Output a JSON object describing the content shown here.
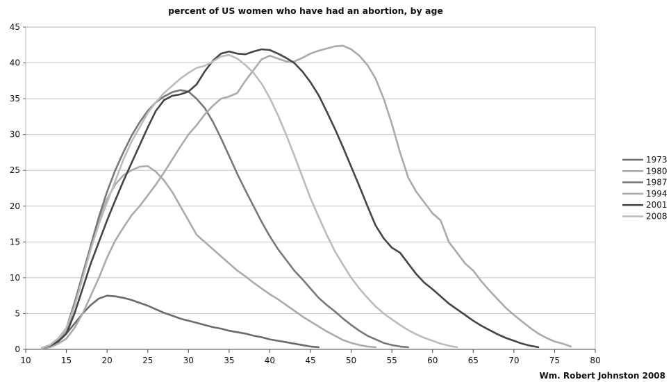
{
  "chart_data": {
    "type": "line",
    "title": "percent of US women who have had an abortion, by age",
    "xlabel": "",
    "ylabel": "",
    "xlim": [
      10,
      80
    ],
    "ylim": [
      0,
      45
    ],
    "x_ticks": [
      "10",
      "15",
      "20",
      "25",
      "30",
      "35",
      "40",
      "45",
      "50",
      "55",
      "60",
      "65",
      "70",
      "75",
      "80"
    ],
    "y_ticks": [
      "0",
      "5",
      "10",
      "15",
      "20",
      "25",
      "30",
      "35",
      "40",
      "45"
    ],
    "grid": "horizontal",
    "legend_position": "right",
    "credit": "Wm. Robert Johnston 2008",
    "series": [
      {
        "name": "1973",
        "color": "#6b6b6b",
        "points": [
          [
            12,
            0.2
          ],
          [
            13,
            0.5
          ],
          [
            14,
            1.2
          ],
          [
            15,
            2.2
          ],
          [
            16,
            3.6
          ],
          [
            17,
            5.0
          ],
          [
            18,
            6.2
          ],
          [
            19,
            7.1
          ],
          [
            20,
            7.5
          ],
          [
            21,
            7.4
          ],
          [
            22,
            7.2
          ],
          [
            23,
            6.9
          ],
          [
            24,
            6.5
          ],
          [
            25,
            6.1
          ],
          [
            26,
            5.6
          ],
          [
            27,
            5.1
          ],
          [
            28,
            4.7
          ],
          [
            29,
            4.3
          ],
          [
            30,
            4.0
          ],
          [
            31,
            3.7
          ],
          [
            32,
            3.4
          ],
          [
            33,
            3.1
          ],
          [
            34,
            2.9
          ],
          [
            35,
            2.6
          ],
          [
            36,
            2.4
          ],
          [
            37,
            2.2
          ],
          [
            38,
            1.9
          ],
          [
            39,
            1.7
          ],
          [
            40,
            1.4
          ],
          [
            41,
            1.2
          ],
          [
            42,
            1.0
          ],
          [
            43,
            0.8
          ],
          [
            44,
            0.6
          ],
          [
            45,
            0.4
          ],
          [
            46,
            0.3
          ]
        ]
      },
      {
        "name": "1980",
        "color": "#aaaaaa",
        "points": [
          [
            12,
            0.2
          ],
          [
            13,
            0.6
          ],
          [
            14,
            1.5
          ],
          [
            15,
            2.5
          ],
          [
            16,
            6.0
          ],
          [
            17,
            10.0
          ],
          [
            18,
            14.0
          ],
          [
            19,
            18.0
          ],
          [
            20,
            21.0
          ],
          [
            21,
            23.0
          ],
          [
            22,
            24.3
          ],
          [
            23,
            25.0
          ],
          [
            24,
            25.5
          ],
          [
            25,
            25.6
          ],
          [
            26,
            24.8
          ],
          [
            27,
            23.6
          ],
          [
            28,
            22.0
          ],
          [
            29,
            20.0
          ],
          [
            30,
            18.0
          ],
          [
            31,
            16.0
          ],
          [
            32,
            15.0
          ],
          [
            33,
            14.0
          ],
          [
            34,
            13.0
          ],
          [
            35,
            12.0
          ],
          [
            36,
            11.0
          ],
          [
            37,
            10.2
          ],
          [
            38,
            9.3
          ],
          [
            39,
            8.5
          ],
          [
            40,
            7.7
          ],
          [
            41,
            7.0
          ],
          [
            42,
            6.2
          ],
          [
            43,
            5.4
          ],
          [
            44,
            4.6
          ],
          [
            45,
            3.9
          ],
          [
            46,
            3.2
          ],
          [
            47,
            2.5
          ],
          [
            48,
            1.9
          ],
          [
            49,
            1.3
          ],
          [
            50,
            0.9
          ],
          [
            51,
            0.6
          ],
          [
            52,
            0.4
          ],
          [
            53,
            0.3
          ]
        ]
      },
      {
        "name": "1987",
        "color": "#777777",
        "points": [
          [
            12,
            0.2
          ],
          [
            13,
            0.6
          ],
          [
            14,
            1.5
          ],
          [
            15,
            3.0
          ],
          [
            16,
            6.5
          ],
          [
            17,
            10.5
          ],
          [
            18,
            14.5
          ],
          [
            19,
            18.5
          ],
          [
            20,
            22.0
          ],
          [
            21,
            25.0
          ],
          [
            22,
            27.5
          ],
          [
            23,
            29.8
          ],
          [
            24,
            31.7
          ],
          [
            25,
            33.3
          ],
          [
            26,
            34.5
          ],
          [
            27,
            35.3
          ],
          [
            28,
            35.9
          ],
          [
            29,
            36.2
          ],
          [
            30,
            36.0
          ],
          [
            31,
            35.0
          ],
          [
            32,
            33.7
          ],
          [
            33,
            31.8
          ],
          [
            34,
            29.5
          ],
          [
            35,
            27.0
          ],
          [
            36,
            24.5
          ],
          [
            37,
            22.2
          ],
          [
            38,
            20.0
          ],
          [
            39,
            17.8
          ],
          [
            40,
            15.8
          ],
          [
            41,
            14.0
          ],
          [
            42,
            12.5
          ],
          [
            43,
            11.0
          ],
          [
            44,
            9.8
          ],
          [
            45,
            8.5
          ],
          [
            46,
            7.2
          ],
          [
            47,
            6.2
          ],
          [
            48,
            5.3
          ],
          [
            49,
            4.3
          ],
          [
            50,
            3.4
          ],
          [
            51,
            2.6
          ],
          [
            52,
            1.9
          ],
          [
            53,
            1.4
          ],
          [
            54,
            0.9
          ],
          [
            55,
            0.6
          ],
          [
            56,
            0.4
          ],
          [
            57,
            0.3
          ]
        ]
      },
      {
        "name": "1994",
        "color": "#aaaaaa",
        "points": [
          [
            12,
            0.1
          ],
          [
            13,
            0.3
          ],
          [
            14,
            0.8
          ],
          [
            15,
            1.5
          ],
          [
            16,
            3.0
          ],
          [
            17,
            5.0
          ],
          [
            18,
            7.5
          ],
          [
            19,
            10.0
          ],
          [
            20,
            12.8
          ],
          [
            21,
            15.2
          ],
          [
            22,
            17.0
          ],
          [
            23,
            18.7
          ],
          [
            24,
            20.0
          ],
          [
            25,
            21.5
          ],
          [
            26,
            23.0
          ],
          [
            27,
            24.7
          ],
          [
            28,
            26.5
          ],
          [
            29,
            28.3
          ],
          [
            30,
            30.0
          ],
          [
            31,
            31.3
          ],
          [
            32,
            32.8
          ],
          [
            33,
            34.0
          ],
          [
            34,
            35.0
          ],
          [
            35,
            35.3
          ],
          [
            36,
            35.8
          ],
          [
            37,
            37.5
          ],
          [
            38,
            39.0
          ],
          [
            39,
            40.5
          ],
          [
            40,
            41.0
          ],
          [
            41,
            40.6
          ],
          [
            42,
            40.2
          ],
          [
            43,
            40.2
          ],
          [
            44,
            40.7
          ],
          [
            45,
            41.3
          ],
          [
            46,
            41.7
          ],
          [
            47,
            42.0
          ],
          [
            48,
            42.3
          ],
          [
            49,
            42.4
          ],
          [
            50,
            41.9
          ],
          [
            51,
            41.0
          ],
          [
            52,
            39.7
          ],
          [
            53,
            37.8
          ],
          [
            54,
            35.0
          ],
          [
            55,
            31.5
          ],
          [
            56,
            27.5
          ],
          [
            57,
            24.0
          ],
          [
            58,
            22.0
          ],
          [
            59,
            20.5
          ],
          [
            60,
            19.0
          ],
          [
            61,
            18.0
          ],
          [
            62,
            15.0
          ],
          [
            63,
            13.5
          ],
          [
            64,
            12.0
          ],
          [
            65,
            11.0
          ],
          [
            66,
            9.5
          ],
          [
            67,
            8.2
          ],
          [
            68,
            7.0
          ],
          [
            69,
            5.8
          ],
          [
            70,
            4.8
          ],
          [
            71,
            3.9
          ],
          [
            72,
            3.0
          ],
          [
            73,
            2.2
          ],
          [
            74,
            1.6
          ],
          [
            75,
            1.1
          ],
          [
            76,
            0.8
          ],
          [
            77,
            0.4
          ]
        ]
      },
      {
        "name": "2001",
        "color": "#444444",
        "points": [
          [
            12,
            0.2
          ],
          [
            13,
            0.5
          ],
          [
            14,
            1.1
          ],
          [
            15,
            2.2
          ],
          [
            16,
            5.0
          ],
          [
            17,
            8.5
          ],
          [
            18,
            12.0
          ],
          [
            19,
            15.0
          ],
          [
            20,
            18.0
          ],
          [
            21,
            20.8
          ],
          [
            22,
            23.5
          ],
          [
            23,
            26.0
          ],
          [
            24,
            28.5
          ],
          [
            25,
            31.0
          ],
          [
            26,
            33.3
          ],
          [
            27,
            34.8
          ],
          [
            28,
            35.4
          ],
          [
            29,
            35.6
          ],
          [
            30,
            36.0
          ],
          [
            31,
            37.0
          ],
          [
            32,
            38.8
          ],
          [
            33,
            40.3
          ],
          [
            34,
            41.3
          ],
          [
            35,
            41.6
          ],
          [
            36,
            41.3
          ],
          [
            37,
            41.2
          ],
          [
            38,
            41.6
          ],
          [
            39,
            41.9
          ],
          [
            40,
            41.8
          ],
          [
            41,
            41.3
          ],
          [
            42,
            40.7
          ],
          [
            43,
            40.0
          ],
          [
            44,
            38.8
          ],
          [
            45,
            37.3
          ],
          [
            46,
            35.5
          ],
          [
            47,
            33.2
          ],
          [
            48,
            30.8
          ],
          [
            49,
            28.2
          ],
          [
            50,
            25.5
          ],
          [
            51,
            22.8
          ],
          [
            52,
            20.0
          ],
          [
            53,
            17.3
          ],
          [
            54,
            15.5
          ],
          [
            55,
            14.2
          ],
          [
            56,
            13.5
          ],
          [
            57,
            12.0
          ],
          [
            58,
            10.5
          ],
          [
            59,
            9.3
          ],
          [
            60,
            8.4
          ],
          [
            61,
            7.4
          ],
          [
            62,
            6.4
          ],
          [
            63,
            5.6
          ],
          [
            64,
            4.8
          ],
          [
            65,
            4.0
          ],
          [
            66,
            3.3
          ],
          [
            67,
            2.7
          ],
          [
            68,
            2.1
          ],
          [
            69,
            1.6
          ],
          [
            70,
            1.2
          ],
          [
            71,
            0.8
          ],
          [
            72,
            0.5
          ],
          [
            73,
            0.3
          ]
        ]
      },
      {
        "name": "2008",
        "color": "#bbbbbb",
        "points": [
          [
            12,
            0.2
          ],
          [
            13,
            0.6
          ],
          [
            14,
            1.5
          ],
          [
            15,
            3.0
          ],
          [
            16,
            6.0
          ],
          [
            17,
            10.0
          ],
          [
            18,
            14.0
          ],
          [
            19,
            17.5
          ],
          [
            20,
            20.5
          ],
          [
            21,
            23.5
          ],
          [
            22,
            26.5
          ],
          [
            23,
            29.0
          ],
          [
            24,
            31.0
          ],
          [
            25,
            33.0
          ],
          [
            26,
            34.5
          ],
          [
            27,
            35.8
          ],
          [
            28,
            36.8
          ],
          [
            29,
            37.8
          ],
          [
            30,
            38.6
          ],
          [
            31,
            39.3
          ],
          [
            32,
            39.6
          ],
          [
            33,
            40.2
          ],
          [
            34,
            40.9
          ],
          [
            35,
            41.1
          ],
          [
            36,
            40.6
          ],
          [
            37,
            39.7
          ],
          [
            38,
            38.6
          ],
          [
            39,
            37.1
          ],
          [
            40,
            35.1
          ],
          [
            41,
            32.7
          ],
          [
            42,
            30.0
          ],
          [
            43,
            27.1
          ],
          [
            44,
            24.1
          ],
          [
            45,
            21.1
          ],
          [
            46,
            18.5
          ],
          [
            47,
            16.0
          ],
          [
            48,
            13.7
          ],
          [
            49,
            11.8
          ],
          [
            50,
            10.0
          ],
          [
            51,
            8.5
          ],
          [
            52,
            7.2
          ],
          [
            53,
            6.0
          ],
          [
            54,
            5.0
          ],
          [
            55,
            4.2
          ],
          [
            56,
            3.4
          ],
          [
            57,
            2.7
          ],
          [
            58,
            2.1
          ],
          [
            59,
            1.6
          ],
          [
            60,
            1.2
          ],
          [
            61,
            0.8
          ],
          [
            62,
            0.5
          ],
          [
            63,
            0.3
          ]
        ]
      }
    ]
  }
}
